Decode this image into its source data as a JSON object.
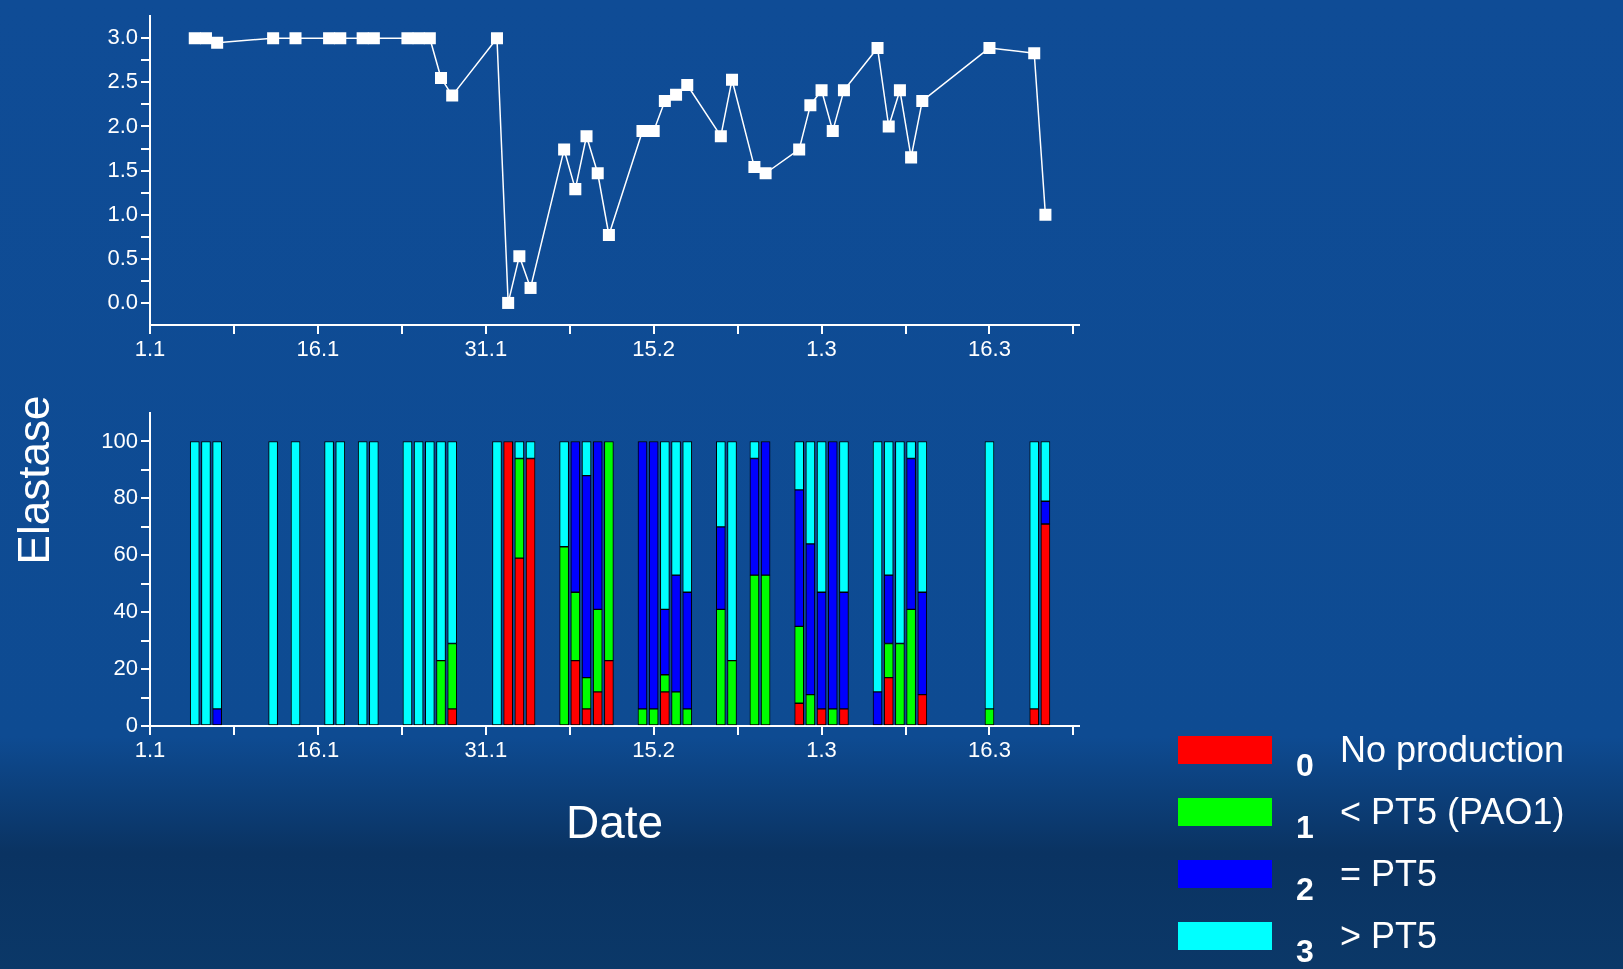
{
  "chart_data": [
    {
      "type": "line",
      "x": [
        "--01-05",
        "--01-06",
        "--01-07",
        "--01-12",
        "--01-14",
        "--01-17",
        "--01-18",
        "--01-20",
        "--01-21",
        "--01-24",
        "--01-25",
        "--01-26",
        "--01-27",
        "--01-28",
        "--02-01",
        "--02-02",
        "--02-03",
        "--02-04",
        "--02-07",
        "--02-08",
        "--02-09",
        "--02-10",
        "--02-11",
        "--02-14",
        "--02-15",
        "--02-16",
        "--02-17",
        "--02-18",
        "--02-21",
        "--02-22",
        "--02-24",
        "--02-25",
        "--02-28",
        "--02-29",
        "--03-01",
        "--03-02",
        "--03-03",
        "--03-06",
        "--03-07",
        "--03-08",
        "--03-09",
        "--03-10",
        "--03-16",
        "--03-20",
        "--03-21"
      ],
      "values": [
        3,
        3,
        2.95,
        3,
        3,
        3,
        3,
        3,
        3,
        3,
        3,
        3,
        2.55,
        2.35,
        3,
        0,
        0.53,
        0.17,
        1.74,
        1.29,
        1.89,
        1.47,
        0.77,
        1.95,
        1.95,
        2.29,
        2.36,
        2.47,
        1.89,
        2.53,
        1.54,
        1.47,
        1.74,
        2.24,
        2.41,
        1.95,
        2.41,
        2.89,
        2,
        2.41,
        1.65,
        2.29,
        2.89,
        2.83,
        1
      ],
      "color": "#ffffff",
      "marker": "square",
      "xlim": [
        "--01-01",
        "--03-24"
      ],
      "xticks": [
        {
          "value": "--01-01",
          "label": "1.1"
        },
        {
          "value": "--01-08T12:00",
          "label": null
        },
        {
          "value": "--01-16",
          "label": "16.1"
        },
        {
          "value": "--01-23T12:00",
          "label": null
        },
        {
          "value": "--01-31",
          "label": "31.1"
        },
        {
          "value": "--02-07T12:00",
          "label": null
        },
        {
          "value": "--02-15",
          "label": "15.2"
        },
        {
          "value": "--02-22T12:00",
          "label": null
        },
        {
          "value": "--03-01",
          "label": "1.3"
        },
        {
          "value": "--03-08T12:00",
          "label": null
        },
        {
          "value": "--03-16",
          "label": "16.3"
        },
        {
          "value": "--03-23T12:00",
          "label": null
        }
      ],
      "ylim": [
        -0.25,
        3.25
      ],
      "yticks": [
        {
          "value": 0,
          "label": "0.0"
        },
        {
          "value": 0.25,
          "label": null
        },
        {
          "value": 0.5,
          "label": "0.5"
        },
        {
          "value": 0.75,
          "label": null
        },
        {
          "value": 1,
          "label": "1.0"
        },
        {
          "value": 1.25,
          "label": null
        },
        {
          "value": 1.5,
          "label": "1.5"
        },
        {
          "value": 1.75,
          "label": null
        },
        {
          "value": 2,
          "label": "2.0"
        },
        {
          "value": 2.25,
          "label": null
        },
        {
          "value": 2.5,
          "label": "2.5"
        },
        {
          "value": 2.75,
          "label": null
        },
        {
          "value": 3,
          "label": "3.0"
        }
      ]
    },
    {
      "type": "bar",
      "stacked": true,
      "xlabel": "Date",
      "ylabel": "Elastase",
      "legend": "bottom right",
      "x": [
        "--01-05",
        "--01-06",
        "--01-07",
        "--01-12",
        "--01-14",
        "--01-17",
        "--01-18",
        "--01-20",
        "--01-21",
        "--01-24",
        "--01-25",
        "--01-26",
        "--01-27",
        "--01-28",
        "--02-01",
        "--02-02",
        "--02-03",
        "--02-04",
        "--02-07",
        "--02-08",
        "--02-09",
        "--02-10",
        "--02-11",
        "--02-14",
        "--02-15",
        "--02-16",
        "--02-17",
        "--02-18",
        "--02-21",
        "--02-22",
        "--02-24",
        "--02-25",
        "--02-28",
        "--02-29",
        "--03-01",
        "--03-02",
        "--03-03",
        "--03-06",
        "--03-07",
        "--03-08",
        "--03-09",
        "--03-10",
        "--03-16",
        "--03-20",
        "--03-21"
      ],
      "series": [
        {
          "name": "0 No production",
          "color": "#ff0000",
          "values": [
            null,
            null,
            null,
            null,
            null,
            null,
            null,
            null,
            null,
            null,
            null,
            null,
            null,
            6,
            null,
            100,
            59,
            94,
            null,
            23,
            6,
            12,
            23,
            null,
            null,
            12,
            null,
            null,
            null,
            null,
            null,
            null,
            8,
            null,
            6,
            null,
            6,
            null,
            17,
            null,
            null,
            11,
            null,
            6,
            71
          ]
        },
        {
          "name": "1 < PT5 (PAO1)",
          "color": "#00ff00",
          "values": [
            null,
            null,
            null,
            null,
            null,
            null,
            null,
            null,
            null,
            null,
            null,
            null,
            23,
            23,
            null,
            null,
            35,
            null,
            63,
            24,
            11,
            29,
            77,
            6,
            6,
            6,
            12,
            6,
            41,
            23,
            53,
            53,
            27,
            11,
            null,
            6,
            null,
            null,
            12,
            29,
            41,
            null,
            6,
            null,
            null
          ]
        },
        {
          "name": "2 = PT5",
          "color": "#0000ff",
          "values": [
            null,
            null,
            6,
            null,
            null,
            null,
            null,
            null,
            null,
            null,
            null,
            null,
            null,
            null,
            null,
            null,
            null,
            null,
            null,
            53,
            71,
            59,
            null,
            94,
            94,
            23,
            41,
            41,
            29,
            null,
            41,
            47,
            48,
            53,
            41,
            94,
            41,
            12,
            24,
            null,
            53,
            36,
            null,
            null,
            8
          ]
        },
        {
          "name": "3 > PT5",
          "color": "#00ffff",
          "values": [
            100,
            100,
            94,
            100,
            100,
            100,
            100,
            100,
            100,
            100,
            100,
            100,
            77,
            71,
            100,
            null,
            6,
            6,
            37,
            null,
            12,
            null,
            null,
            null,
            null,
            59,
            47,
            53,
            30,
            77,
            6,
            null,
            17,
            36,
            53,
            null,
            53,
            88,
            47,
            71,
            6,
            53,
            94,
            94,
            21
          ]
        }
      ],
      "xlim": [
        "--01-01",
        "--03-24"
      ],
      "xticks": [
        {
          "value": "--01-01",
          "label": "1.1"
        },
        {
          "value": "--01-08T12:00",
          "label": null
        },
        {
          "value": "--01-16",
          "label": "16.1"
        },
        {
          "value": "--01-23T12:00",
          "label": null
        },
        {
          "value": "--01-31",
          "label": "31.1"
        },
        {
          "value": "--02-07T12:00",
          "label": null
        },
        {
          "value": "--02-15",
          "label": "15.2"
        },
        {
          "value": "--02-22T12:00",
          "label": null
        },
        {
          "value": "--03-01",
          "label": "1.3"
        },
        {
          "value": "--03-08T12:00",
          "label": null
        },
        {
          "value": "--03-16",
          "label": "16.3"
        },
        {
          "value": "--03-23T12:00",
          "label": null
        }
      ],
      "ylim": [
        0,
        110
      ],
      "yticks": [
        0,
        {
          "value": 10,
          "label": null
        },
        20,
        {
          "value": 30,
          "label": null
        },
        40,
        {
          "value": 50,
          "label": null
        },
        60,
        {
          "value": 70,
          "label": null
        },
        80,
        {
          "value": 90,
          "label": null
        },
        100
      ]
    }
  ]
}
